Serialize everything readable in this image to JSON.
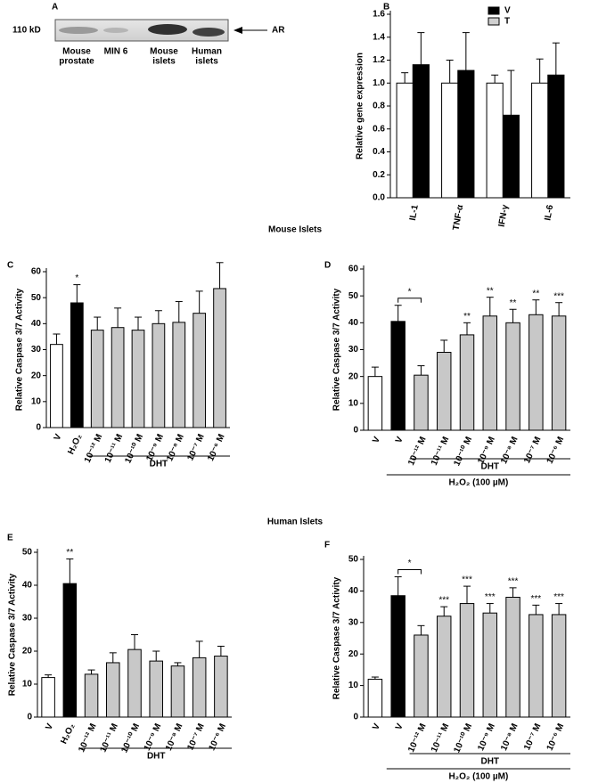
{
  "panel_a": {
    "label": "A",
    "size_label": "110 kD",
    "band_label": "AR",
    "lanes": [
      [
        "Mouse",
        "prostate"
      ],
      [
        "MIN 6"
      ],
      [
        "Mouse",
        "islets"
      ],
      [
        "Human",
        "islets"
      ]
    ]
  },
  "section_titles": [
    "Mouse Islets",
    "Human Islets"
  ],
  "chart_data": [
    {
      "type": "bar",
      "panel_label": "B",
      "ylabel": "Relative gene expression",
      "categories": [
        "IL-1",
        "TNF-α",
        "IFN-γ",
        "IL-6"
      ],
      "series": [
        {
          "name": "V",
          "color": "#000000",
          "values": [
            1.16,
            1.11,
            0.72,
            1.07
          ],
          "errors": [
            0.28,
            0.33,
            0.39,
            0.28
          ]
        },
        {
          "name": "T",
          "color": "#ffffff",
          "values": [
            1.0,
            1.0,
            1.0,
            1.0
          ],
          "errors": [
            0.09,
            0.2,
            0.07,
            0.21
          ]
        }
      ],
      "ylim": [
        0,
        1.6
      ],
      "yticks": [
        {
          "value": 0,
          "label": "0.0"
        },
        0.2,
        0.4,
        0.6,
        0.8,
        {
          "value": 1,
          "label": "1.0"
        },
        1.2,
        1.4,
        1.6
      ]
    },
    {
      "type": "bar",
      "panel_label": "C",
      "ylabel": "Relative Caspase 3/7 Activity",
      "categories": [
        "V",
        "H₂O₂",
        "10⁻¹² M",
        "10⁻¹¹ M",
        "10⁻¹⁰ M",
        "10⁻⁹ M",
        "10⁻⁸ M",
        "10⁻⁷ M",
        "10⁻⁶ M"
      ],
      "values": [
        32,
        48,
        37.5,
        38.5,
        37.5,
        40,
        40.5,
        44,
        53.5
      ],
      "errors": [
        4,
        7,
        5,
        7.5,
        5,
        5,
        8,
        8.5,
        10
      ],
      "colors": [
        "#ffffff",
        "#000000",
        "#c8c8c8",
        "#c8c8c8",
        "#c8c8c8",
        "#c8c8c8",
        "#c8c8c8",
        "#c8c8c8",
        "#c8c8c8"
      ],
      "significance": [
        null,
        "*",
        null,
        null,
        null,
        null,
        null,
        null,
        null
      ],
      "group_labels": [
        "DHT"
      ],
      "ylim": [
        0,
        60
      ],
      "yticks": [
        0,
        10,
        20,
        30,
        40,
        50,
        60
      ]
    },
    {
      "type": "bar",
      "panel_label": "D",
      "ylabel": "Relative Caspase 3/7 Activity",
      "categories": [
        "V",
        "V",
        "10⁻¹² M",
        "10⁻¹¹ M",
        "10⁻¹⁰ M",
        "10⁻⁹ M",
        "10⁻⁸ M",
        "10⁻⁷ M",
        "10⁻⁶ M"
      ],
      "values": [
        20,
        40.5,
        20.5,
        29,
        35.5,
        42.5,
        40,
        43,
        42.5
      ],
      "errors": [
        3.5,
        6,
        3.5,
        4.5,
        4.5,
        7,
        5,
        5.5,
        5
      ],
      "colors": [
        "#ffffff",
        "#000000",
        "#c8c8c8",
        "#c8c8c8",
        "#c8c8c8",
        "#c8c8c8",
        "#c8c8c8",
        "#c8c8c8",
        "#c8c8c8"
      ],
      "significance": [
        null,
        null,
        null,
        null,
        "**",
        "**",
        "**",
        "**",
        "***"
      ],
      "bracket_label": "*",
      "group_labels": [
        "DHT",
        "H₂O₂ (100 µM)"
      ],
      "ylim": [
        0,
        60
      ],
      "yticks": [
        0,
        10,
        20,
        30,
        40,
        50,
        60
      ]
    },
    {
      "type": "bar",
      "panel_label": "E",
      "ylabel": "Relative Caspase 3/7 Activity",
      "categories": [
        "V",
        "H₂O₂",
        "10⁻¹² M",
        "10⁻¹¹ M",
        "10⁻¹⁰ M",
        "10⁻⁹ M",
        "10⁻⁸ M",
        "10⁻⁷ M",
        "10⁻⁶ M"
      ],
      "values": [
        12,
        40.5,
        13,
        16.5,
        20.5,
        17,
        15.5,
        18,
        18.5
      ],
      "errors": [
        0.8,
        7.5,
        1.3,
        3,
        4.5,
        3,
        1,
        5,
        3
      ],
      "colors": [
        "#ffffff",
        "#000000",
        "#c8c8c8",
        "#c8c8c8",
        "#c8c8c8",
        "#c8c8c8",
        "#c8c8c8",
        "#c8c8c8",
        "#c8c8c8"
      ],
      "significance": [
        null,
        "**",
        null,
        null,
        null,
        null,
        null,
        null,
        null
      ],
      "group_labels": [
        "DHT"
      ],
      "ylim": [
        0,
        50
      ],
      "yticks": [
        0,
        10,
        20,
        30,
        40,
        50
      ]
    },
    {
      "type": "bar",
      "panel_label": "F",
      "ylabel": "Relative Caspase 3/7 Activity",
      "categories": [
        "V",
        "V",
        "10⁻¹² M",
        "10⁻¹¹ M",
        "10⁻¹⁰ M",
        "10⁻⁹ M",
        "10⁻⁸ M",
        "10⁻⁷ M",
        "10⁻⁶ M"
      ],
      "values": [
        12,
        38.5,
        26,
        32,
        36,
        33,
        38,
        32.5,
        32.5
      ],
      "errors": [
        0.7,
        6,
        3,
        3,
        5.5,
        3,
        3,
        3,
        3.5
      ],
      "colors": [
        "#ffffff",
        "#000000",
        "#c8c8c8",
        "#c8c8c8",
        "#c8c8c8",
        "#c8c8c8",
        "#c8c8c8",
        "#c8c8c8",
        "#c8c8c8"
      ],
      "significance": [
        null,
        null,
        null,
        "***",
        "***",
        "***",
        "***",
        "***",
        "***"
      ],
      "bracket_label": "*",
      "group_labels": [
        "DHT",
        "H₂O₂ (100 µM)"
      ],
      "ylim": [
        0,
        50
      ],
      "yticks": [
        0,
        10,
        20,
        30,
        40,
        50
      ]
    }
  ]
}
